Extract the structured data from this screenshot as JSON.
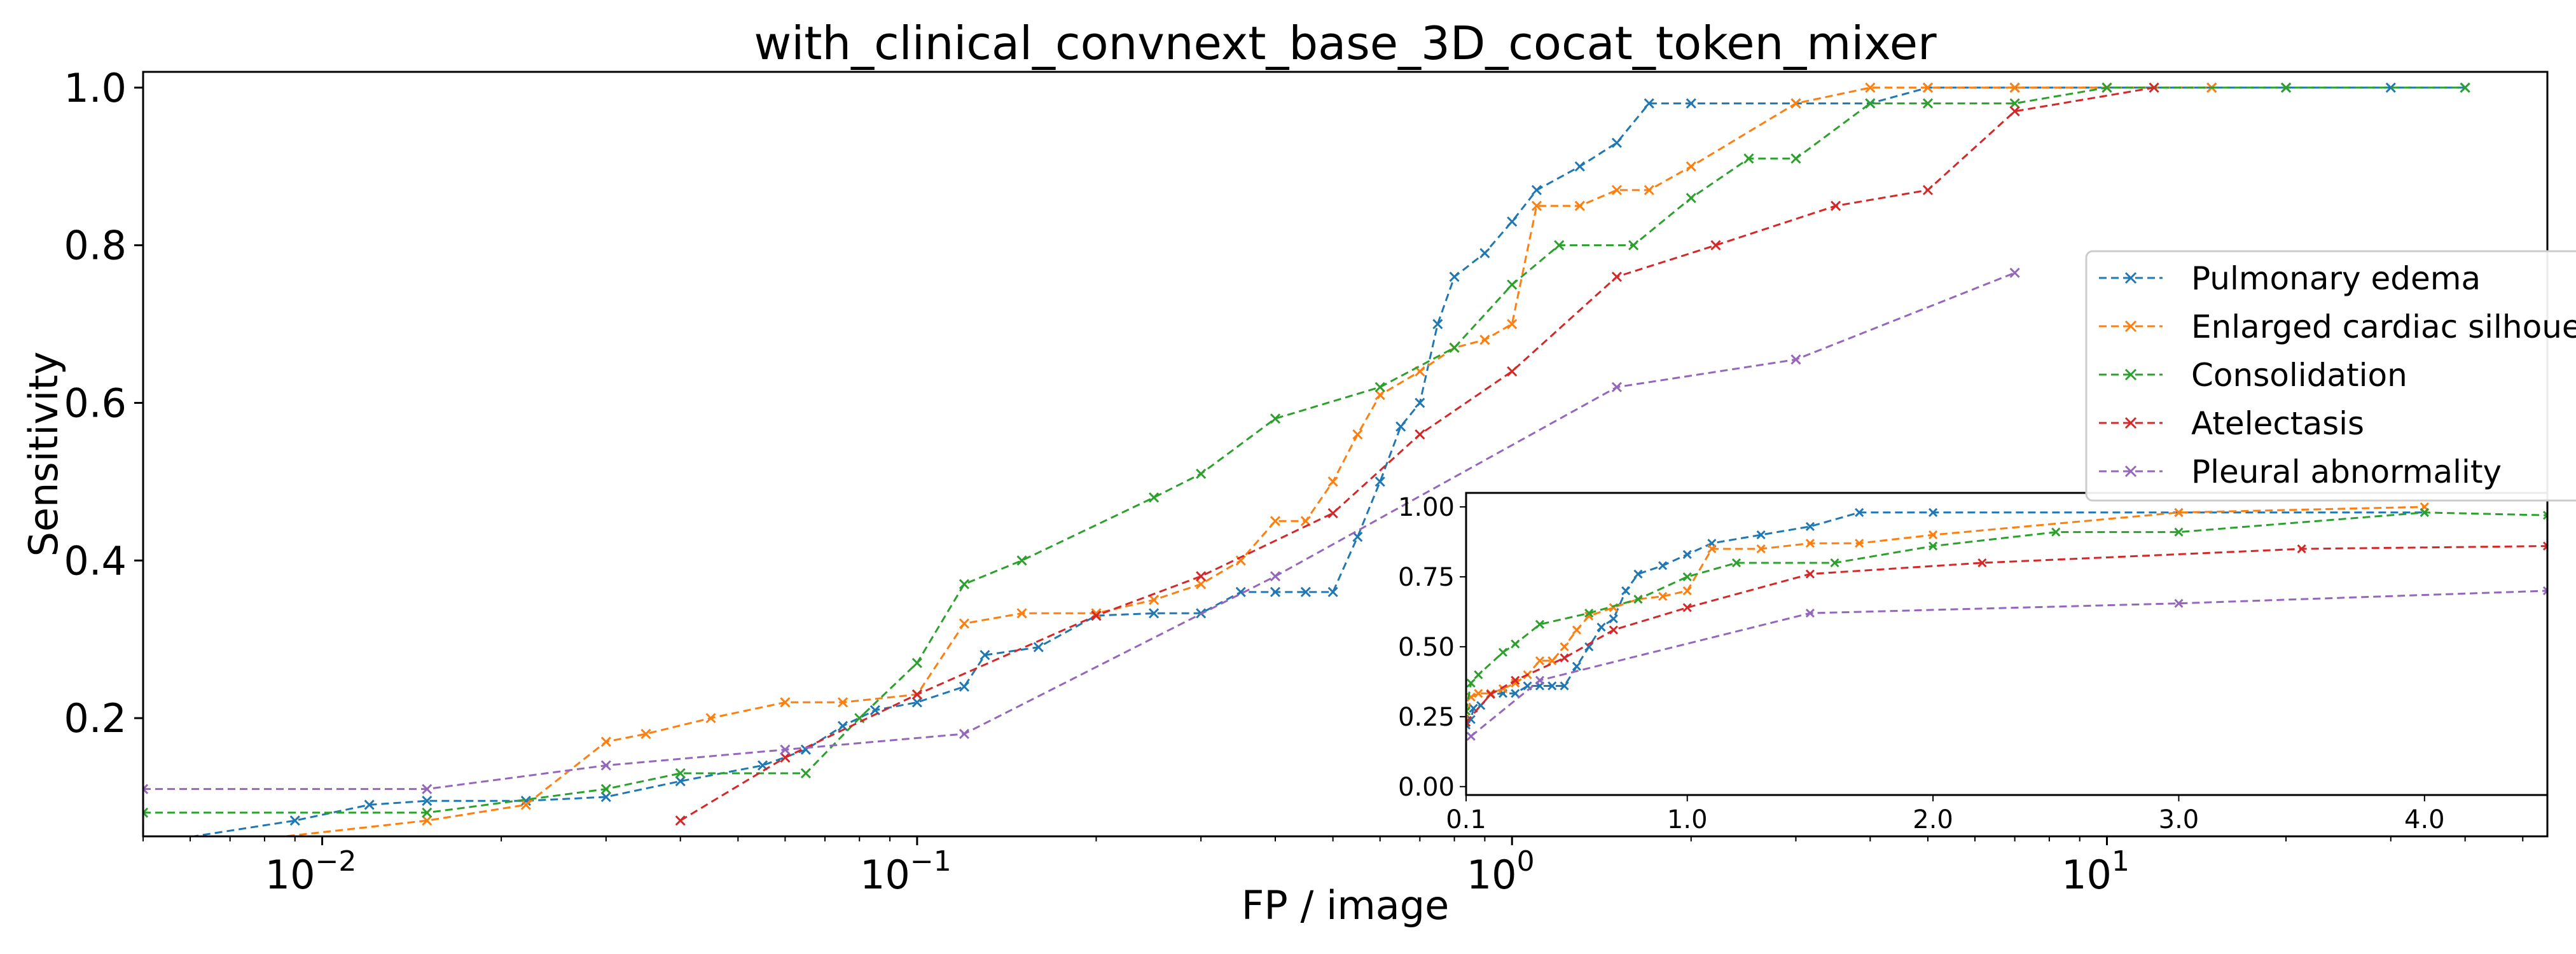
{
  "chart_data": [
    {
      "type": "line",
      "title": "with_clinical_convnext_base_3D_cocat_token_mixer",
      "xlabel": "FP / image",
      "ylabel": "Sensitivity",
      "x_scale": "log",
      "xlim": [
        0.005,
        55
      ],
      "ylim": [
        0.05,
        1.02
      ],
      "x_ticks": [
        {
          "value": 0.01,
          "mantissa": "10",
          "exponent": "−2"
        },
        {
          "value": 0.1,
          "mantissa": "10",
          "exponent": "−1"
        },
        {
          "value": 1,
          "mantissa": "10",
          "exponent": "0"
        },
        {
          "value": 10,
          "mantissa": "10",
          "exponent": "1"
        }
      ],
      "y_ticks": [
        {
          "value": 0.2,
          "label": "0.2"
        },
        {
          "value": 0.4,
          "label": "0.4"
        },
        {
          "value": 0.6,
          "label": "0.6"
        },
        {
          "value": 0.8,
          "label": "0.8"
        },
        {
          "value": 1.0,
          "label": "1.0"
        }
      ],
      "grid": false,
      "legend_position": "right",
      "marker": "x",
      "line_style": "dashed",
      "series": [
        {
          "name": "Pulmonary edema",
          "color": "#1f77b4",
          "x": [
            0.005,
            0.009,
            0.012,
            0.015,
            0.022,
            0.03,
            0.04,
            0.055,
            0.065,
            0.075,
            0.085,
            0.1,
            0.12,
            0.13,
            0.16,
            0.2,
            0.25,
            0.3,
            0.35,
            0.4,
            0.45,
            0.5,
            0.55,
            0.6,
            0.65,
            0.7,
            0.75,
            0.8,
            0.9,
            1.0,
            1.1,
            1.3,
            1.5,
            1.7,
            2.0,
            3.0,
            4.0,
            5.0,
            7.0,
            10.0,
            15.0,
            20.0,
            30.0,
            40.0
          ],
          "y": [
            0.04,
            0.07,
            0.09,
            0.095,
            0.095,
            0.1,
            0.12,
            0.14,
            0.16,
            0.19,
            0.21,
            0.22,
            0.24,
            0.28,
            0.29,
            0.33,
            0.333,
            0.333,
            0.36,
            0.36,
            0.36,
            0.36,
            0.43,
            0.5,
            0.57,
            0.6,
            0.7,
            0.76,
            0.79,
            0.83,
            0.87,
            0.9,
            0.93,
            0.98,
            0.98,
            0.98,
            0.98,
            1.0,
            1.0,
            1.0,
            1.0,
            1.0,
            1.0,
            1.0
          ]
        },
        {
          "name": "Enlarged cardiac silhouette",
          "color": "#ff7f0e",
          "x": [
            0.005,
            0.015,
            0.022,
            0.03,
            0.035,
            0.045,
            0.06,
            0.075,
            0.1,
            0.12,
            0.15,
            0.2,
            0.25,
            0.3,
            0.35,
            0.4,
            0.45,
            0.5,
            0.55,
            0.6,
            0.7,
            0.8,
            0.9,
            1.0,
            1.1,
            1.3,
            1.5,
            1.7,
            2.0,
            3.0,
            4.0,
            5.0,
            7.0,
            10.0,
            15.0
          ],
          "y": [
            0.03,
            0.07,
            0.09,
            0.17,
            0.18,
            0.2,
            0.22,
            0.22,
            0.23,
            0.32,
            0.333,
            0.333,
            0.35,
            0.37,
            0.4,
            0.45,
            0.45,
            0.5,
            0.56,
            0.61,
            0.64,
            0.67,
            0.68,
            0.7,
            0.85,
            0.85,
            0.87,
            0.87,
            0.9,
            0.98,
            1.0,
            1.0,
            1.0,
            1.0,
            1.0
          ]
        },
        {
          "name": "Consolidation",
          "color": "#2ca02c",
          "x": [
            0.005,
            0.015,
            0.03,
            0.04,
            0.065,
            0.08,
            0.1,
            0.12,
            0.15,
            0.25,
            0.3,
            0.4,
            0.6,
            0.8,
            1.0,
            1.2,
            1.6,
            2.0,
            2.5,
            3.0,
            4.0,
            5.0,
            7.0,
            10.0,
            20.0,
            40.0
          ],
          "y": [
            0.08,
            0.08,
            0.11,
            0.13,
            0.13,
            0.2,
            0.27,
            0.37,
            0.4,
            0.48,
            0.51,
            0.58,
            0.62,
            0.67,
            0.75,
            0.8,
            0.8,
            0.86,
            0.91,
            0.91,
            0.98,
            0.98,
            0.98,
            1.0,
            1.0,
            1.0
          ],
          "inset_end": 0.97
        },
        {
          "name": "Atelectasis",
          "color": "#d62728",
          "x": [
            0.04,
            0.06,
            0.1,
            0.2,
            0.3,
            0.5,
            0.7,
            1.0,
            1.5,
            2.2,
            3.5,
            5.0,
            7.0,
            12.0
          ],
          "y": [
            0.07,
            0.15,
            0.23,
            0.33,
            0.38,
            0.46,
            0.56,
            0.64,
            0.76,
            0.8,
            0.85,
            0.87,
            0.97,
            1.0
          ],
          "inset_end": 0.86
        },
        {
          "name": "Pleural abnormality",
          "color": "#9467bd",
          "x": [
            0.005,
            0.015,
            0.03,
            0.06,
            0.12,
            0.4,
            1.5,
            3.0,
            7.0
          ],
          "y": [
            0.11,
            0.11,
            0.14,
            0.16,
            0.18,
            0.38,
            0.62,
            0.655,
            0.765
          ],
          "inset_end": 0.7
        }
      ]
    },
    {
      "type": "line",
      "xlim": [
        0.1,
        4.5
      ],
      "ylim": [
        -0.03,
        1.05
      ],
      "x_ticks": [
        {
          "value": 0.1,
          "label": "0.1"
        },
        {
          "value": 1.0,
          "label": "1.0"
        },
        {
          "value": 2.0,
          "label": "2.0"
        },
        {
          "value": 3.0,
          "label": "3.0"
        },
        {
          "value": 4.0,
          "label": "4.0"
        }
      ],
      "y_ticks": [
        {
          "value": 0.0,
          "label": "0.00"
        },
        {
          "value": 0.25,
          "label": "0.25"
        },
        {
          "value": 0.5,
          "label": "0.50"
        },
        {
          "value": 0.75,
          "label": "0.75"
        },
        {
          "value": 1.0,
          "label": "1.00"
        }
      ],
      "grid": false
    }
  ]
}
